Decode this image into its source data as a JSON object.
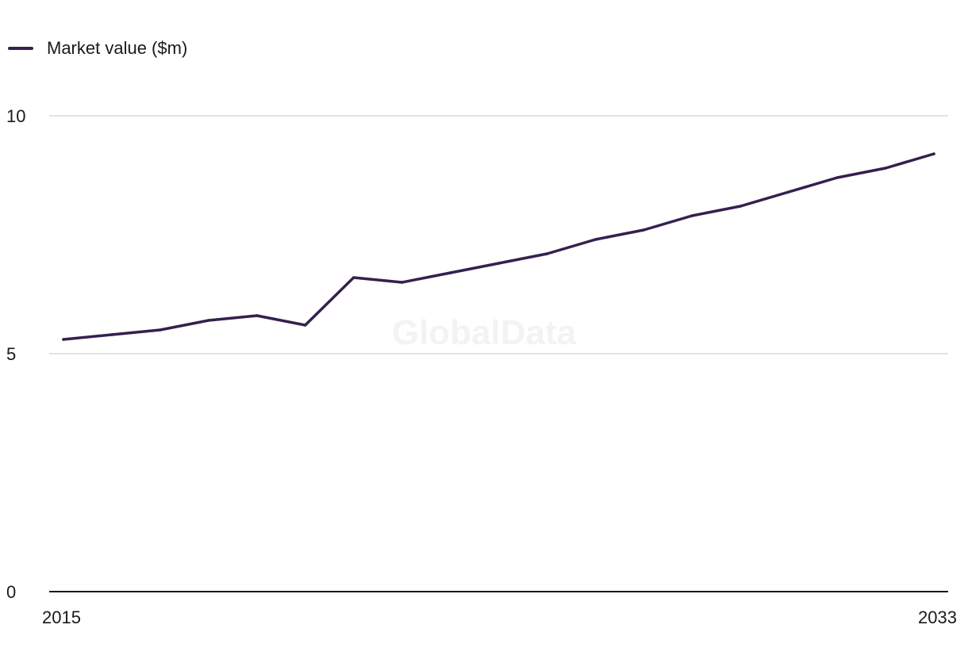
{
  "chart_data": {
    "type": "line",
    "x": [
      2015,
      2016,
      2017,
      2018,
      2019,
      2020,
      2021,
      2022,
      2023,
      2024,
      2025,
      2026,
      2027,
      2028,
      2029,
      2030,
      2031,
      2032,
      2033
    ],
    "series": [
      {
        "name": "Market value ($m)",
        "values": [
          5.3,
          5.4,
          5.5,
          5.7,
          5.8,
          5.6,
          6.6,
          6.5,
          6.7,
          6.9,
          7.1,
          7.4,
          7.6,
          7.9,
          8.1,
          8.4,
          8.7,
          8.9,
          9.2
        ]
      }
    ],
    "title": "",
    "xlabel": "",
    "ylabel": "",
    "ylim": [
      0,
      10
    ],
    "xlim": [
      2015,
      2033
    ],
    "y_ticks": [
      "0",
      "5",
      "10"
    ],
    "x_ticks": [
      "2015",
      "2033"
    ],
    "grid": true,
    "legend_position": "top-left",
    "watermark": "GlobalData",
    "colors": {
      "line": "#35204f",
      "grid": "#d9d9d9",
      "axis": "#1a1a1a",
      "watermark": "#f3f3f3"
    }
  }
}
